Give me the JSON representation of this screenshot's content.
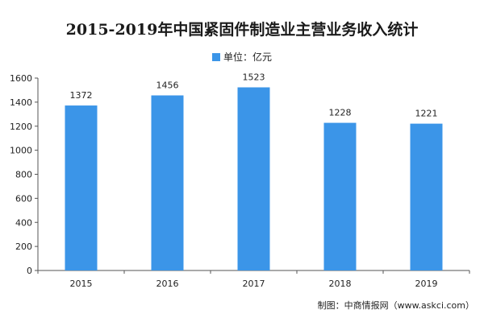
{
  "chart_data": {
    "type": "bar",
    "title": "2015-2019年中国紧固件制造业主营业务收入统计",
    "legend": {
      "label": "单位：亿元",
      "placement": "top-center"
    },
    "categories": [
      "2015",
      "2016",
      "2017",
      "2018",
      "2019"
    ],
    "series": [
      {
        "name": "单位：亿元",
        "values": [
          1372,
          1456,
          1523,
          1228,
          1221
        ]
      }
    ],
    "y_ticks": [
      0,
      200,
      400,
      600,
      800,
      1000,
      1200,
      1400,
      1600
    ],
    "ylim": [
      0,
      1600
    ],
    "grid": false,
    "color": "#3b95e8"
  },
  "source": "制图：中商情报网（www.askci.com）"
}
